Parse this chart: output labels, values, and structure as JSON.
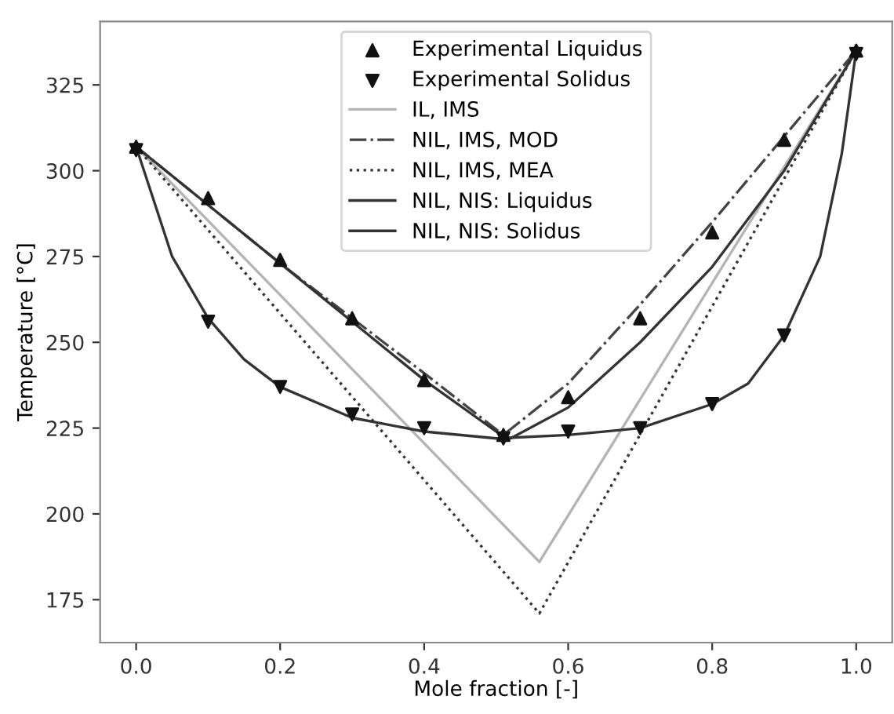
{
  "chart_data": {
    "type": "line",
    "xlabel": "Mole fraction [-]",
    "ylabel": "Temperature [°C]",
    "xlim": [
      -0.05,
      1.05
    ],
    "ylim": [
      162.5,
      343.5
    ],
    "xticks": [
      {
        "value": 0,
        "label": "0.0"
      },
      {
        "value": 0.2,
        "label": "0.2"
      },
      {
        "value": 0.4,
        "label": "0.4"
      },
      {
        "value": 0.6,
        "label": "0.6"
      },
      {
        "value": 0.8,
        "label": "0.8"
      },
      {
        "value": 1,
        "label": "1.0"
      }
    ],
    "yticks": [
      175,
      200,
      225,
      250,
      275,
      300,
      325
    ],
    "grid": false,
    "legend": "top",
    "series": [
      {
        "name": "Experimental Liquidus",
        "type": "scatter",
        "marker": "triangle",
        "color": "#111111",
        "x": [
          0,
          0.1,
          0.2,
          0.3,
          0.4,
          0.51,
          0.6,
          0.7,
          0.8,
          0.9,
          1.0
        ],
        "values": [
          307,
          292,
          274,
          257,
          239,
          223,
          234,
          257,
          282,
          309,
          335
        ]
      },
      {
        "name": "Experimental Solidus",
        "type": "scatter",
        "marker": "triangle_down",
        "color": "#111111",
        "x": [
          0,
          0.1,
          0.2,
          0.3,
          0.4,
          0.51,
          0.6,
          0.7,
          0.8,
          0.9,
          1.0
        ],
        "values": [
          306,
          256,
          237,
          229,
          225,
          222,
          224,
          225,
          232,
          252,
          334
        ]
      },
      {
        "name": "IL, IMS",
        "line_style": "solid",
        "color": "#b4b4b4",
        "x": [
          0,
          0.56,
          1.0
        ],
        "values": [
          307,
          186,
          335
        ]
      },
      {
        "name": "NIL, IMS, MOD",
        "line_style": "dashdot",
        "color": "#444444",
        "x": [
          0,
          0.1,
          0.2,
          0.3,
          0.4,
          0.51,
          0.6,
          0.7,
          0.8,
          0.9,
          1.0
        ],
        "values": [
          307,
          290,
          273,
          257,
          241,
          223,
          238,
          261,
          285,
          310,
          335
        ]
      },
      {
        "name": "NIL, IMS, MEA",
        "line_style": "dotted",
        "color": "#333333",
        "x": [
          0,
          0.56,
          1.0
        ],
        "values": [
          307,
          171,
          335
        ]
      },
      {
        "name": "NIL, NIS: Liquidus",
        "line_style": "solid",
        "color": "#333333",
        "x": [
          0,
          0.1,
          0.2,
          0.3,
          0.4,
          0.5,
          0.52,
          0.6,
          0.7,
          0.8,
          0.9,
          1.0
        ],
        "values": [
          307,
          290,
          273,
          256,
          239,
          224,
          222,
          231,
          250,
          272,
          300,
          335
        ]
      },
      {
        "name": "NIL, NIS: Solidus",
        "line_style": "solid",
        "color": "#333333",
        "x": [
          0,
          0.05,
          0.1,
          0.15,
          0.2,
          0.3,
          0.4,
          0.5,
          0.6,
          0.7,
          0.8,
          0.85,
          0.9,
          0.95,
          0.98,
          1.0
        ],
        "values": [
          307,
          275,
          257,
          245,
          237,
          228,
          224,
          222,
          223,
          225,
          232,
          238,
          252,
          275,
          305,
          335
        ]
      }
    ]
  }
}
